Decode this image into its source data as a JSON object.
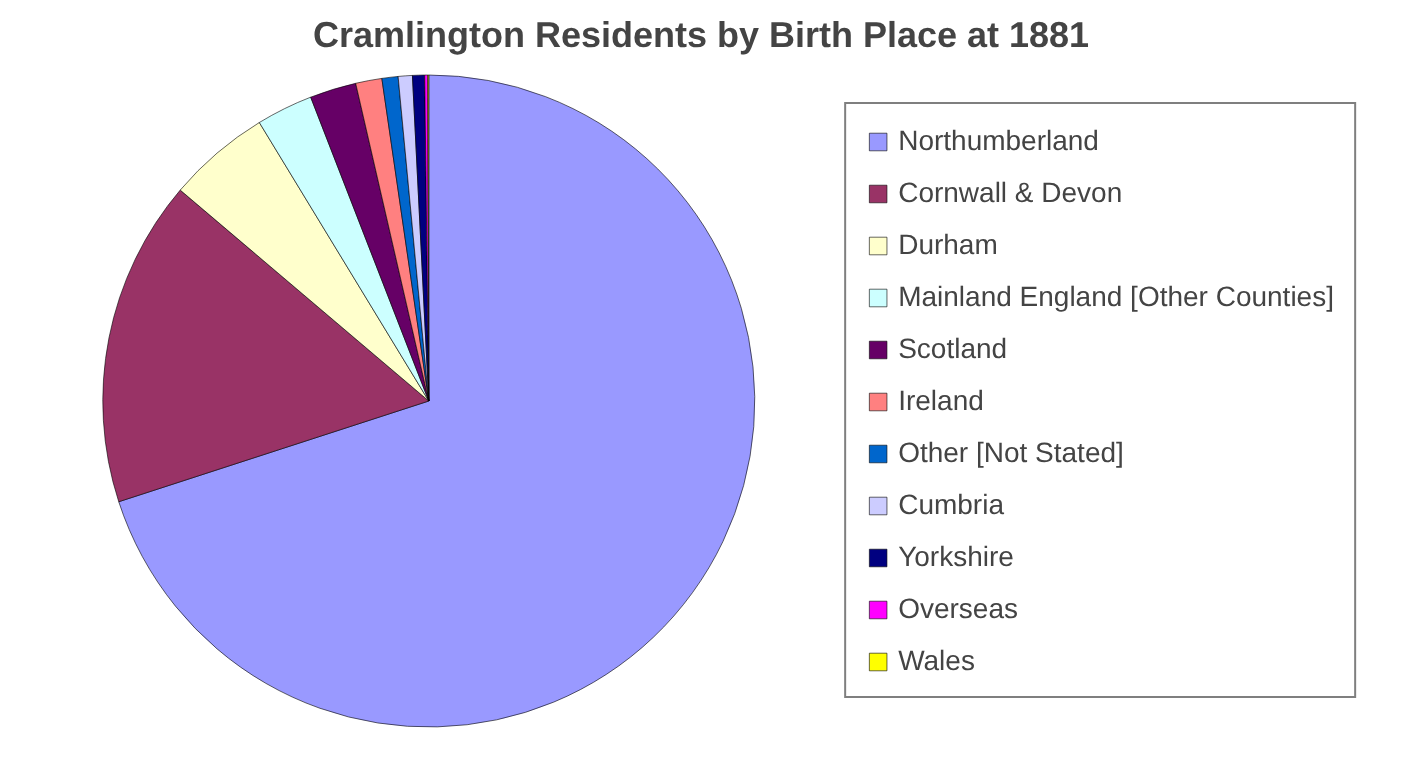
{
  "chart_data": {
    "type": "pie",
    "title": "Cramlington Residents by Birth Place at 1881",
    "categories": [
      "Northumberland",
      "Cornwall & Devon",
      "Durham",
      "Mainland England [Other Counties]",
      "Scotland",
      "Ireland",
      "Other [Not Stated]",
      "Cumbria",
      "Yorkshire",
      "Overseas",
      "Wales"
    ],
    "values": [
      70,
      16.2,
      5.1,
      2.8,
      2.3,
      1.3,
      0.8,
      0.7,
      0.6,
      0.15,
      0.05
    ],
    "colors": [
      "#9999ff",
      "#993366",
      "#ffffcc",
      "#ccffff",
      "#660066",
      "#ff8080",
      "#0066cc",
      "#ccccff",
      "#000080",
      "#ff00ff",
      "#ffff00"
    ],
    "legend": "right"
  }
}
